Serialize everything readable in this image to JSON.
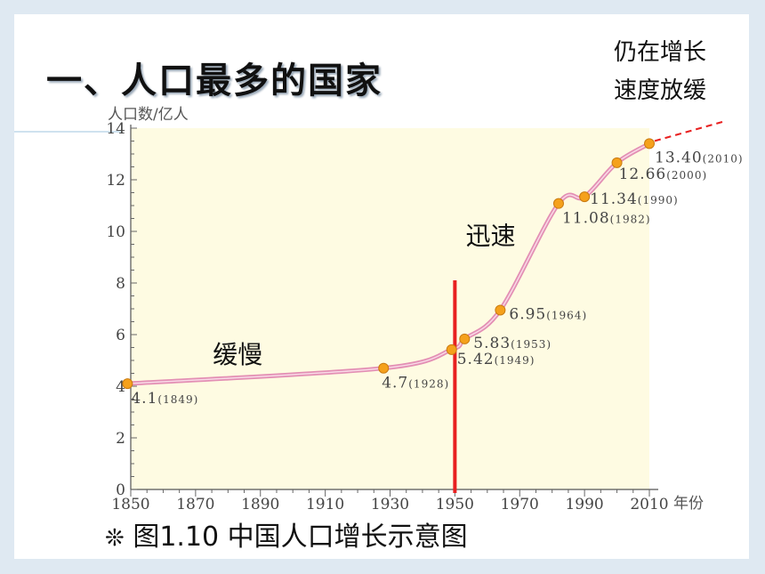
{
  "slide": {
    "title": "一、人口最多的国家",
    "note_line1": "仍在增长",
    "note_line2": "速度放缓",
    "caption_symbol": "❊",
    "caption": "图1.10 中国人口增长示意图"
  },
  "colors": {
    "plot_bg": "#fefbe2",
    "curve": "#e38fb4",
    "marker": "#f5a11c",
    "marker_edge": "#c97b12",
    "divider": "#e82020",
    "dashed": "#e82020"
  },
  "chart_data": {
    "type": "line",
    "ylabel": "人口数/亿人",
    "xlabel": "年份",
    "xlim": [
      1850,
      2010
    ],
    "ylim": [
      0,
      14
    ],
    "x_ticks": [
      1850,
      1870,
      1890,
      1910,
      1930,
      1950,
      1970,
      1990,
      2010
    ],
    "y_ticks": [
      0,
      2,
      4,
      6,
      8,
      10,
      12,
      14
    ],
    "series": [
      {
        "points": [
          {
            "x": 1849,
            "y": 4.1,
            "label": "4.1",
            "year_label": "(1849)"
          },
          {
            "x": 1928,
            "y": 4.7,
            "label": "4.7",
            "year_label": "(1928)"
          },
          {
            "x": 1949,
            "y": 5.42,
            "label": "5.42",
            "year_label": "(1949)"
          },
          {
            "x": 1953,
            "y": 5.83,
            "label": "5.83",
            "year_label": "(1953)"
          },
          {
            "x": 1964,
            "y": 6.95,
            "label": "6.95",
            "year_label": "(1964)"
          },
          {
            "x": 1982,
            "y": 11.08,
            "label": "11.08",
            "year_label": "(1982)"
          },
          {
            "x": 1990,
            "y": 11.34,
            "label": "11.34",
            "year_label": "(1990)"
          },
          {
            "x": 2000,
            "y": 12.66,
            "label": "12.66",
            "year_label": "(2000)"
          },
          {
            "x": 2010,
            "y": 13.4,
            "label": "13.40",
            "year_label": "(2010)"
          }
        ]
      }
    ],
    "vertical_marker_x": 1950,
    "annotations": [
      {
        "text": "缓慢",
        "x": 1883,
        "y": 4.9
      },
      {
        "text": "迅速",
        "x": 1961,
        "y": 9.5
      }
    ],
    "grid": false
  }
}
